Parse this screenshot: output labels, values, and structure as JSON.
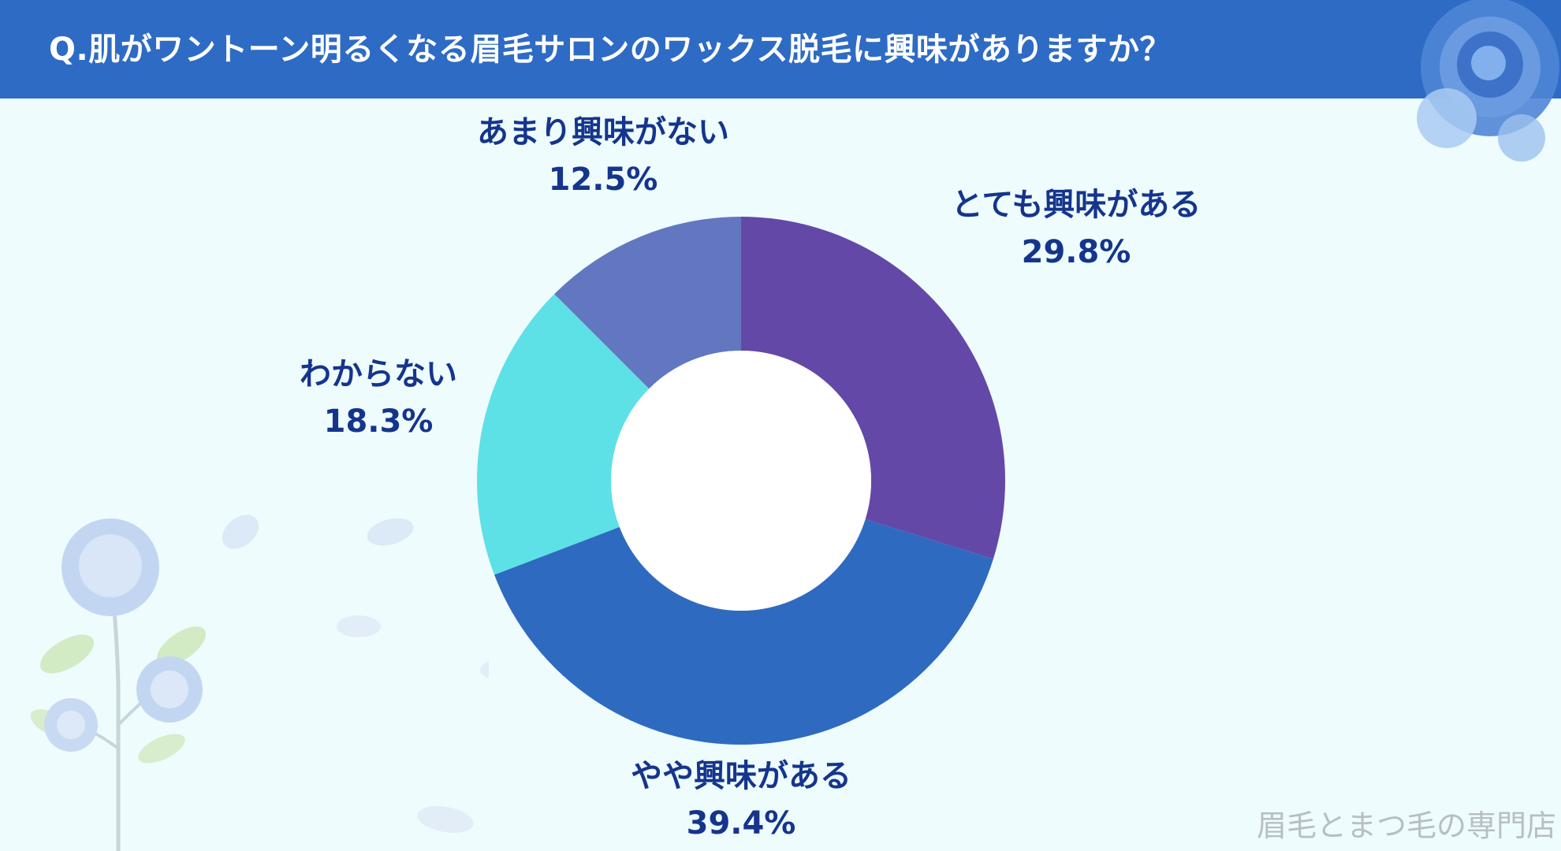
{
  "title": "Q.肌がワントーン明るくなる眉毛サロンのワックス脱毛に興味がありますか？",
  "footer": "眉毛とまつ毛の専門店",
  "colors": {
    "header": "#2E6BC4",
    "background": "#EEFCFE",
    "label_text": "#15358C"
  },
  "chart_data": {
    "type": "pie",
    "donut": true,
    "start_angle_deg": 0,
    "direction": "clockwise",
    "slices": [
      {
        "label": "とても興味がある",
        "value": 29.8,
        "value_label": "29.8%",
        "color": "#6448A8"
      },
      {
        "label": "やや興味がある",
        "value": 39.4,
        "value_label": "39.4%",
        "color": "#2F6AC1"
      },
      {
        "label": "わからない",
        "value": 18.3,
        "value_label": "18.3%",
        "color": "#5DE0E6"
      },
      {
        "label": "あまり興味がない",
        "value": 12.5,
        "value_label": "12.5%",
        "color": "#6277C0"
      }
    ]
  }
}
